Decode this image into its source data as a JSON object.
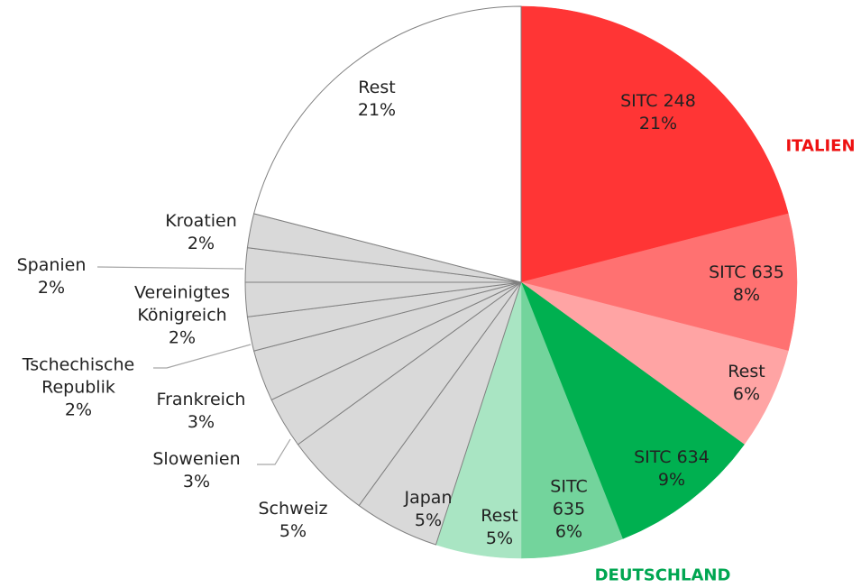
{
  "chart_data": {
    "type": "pie",
    "categories": [
      "SITC 248",
      "SITC 635",
      "Rest",
      "SITC 634",
      "SITC 635",
      "Rest",
      "Japan",
      "Schweiz",
      "Slowenien",
      "Frankreich",
      "Tschechische Republik",
      "Vereinigtes Königreich",
      "Spanien",
      "Kroatien",
      "Rest"
    ],
    "values": [
      21,
      8,
      6,
      9,
      6,
      5,
      5,
      5,
      3,
      3,
      2,
      2,
      2,
      2,
      21
    ],
    "value_labels": [
      "21%",
      "8%",
      "6%",
      "9%",
      "6%",
      "5%",
      "5%",
      "5%",
      "3%",
      "3%",
      "2%",
      "2%",
      "2%",
      "2%",
      "21%"
    ],
    "colors": [
      "#ff3535",
      "#ff7171",
      "#ffa4a4",
      "#00b050",
      "#73d49c",
      "#a9e5c3",
      "#d9d9d9",
      "#d9d9d9",
      "#d9d9d9",
      "#d9d9d9",
      "#d9d9d9",
      "#d9d9d9",
      "#d9d9d9",
      "#d9d9d9",
      "#ffffff"
    ],
    "annotations": [
      {
        "text": "ITALIEN",
        "color": "#ee1111"
      },
      {
        "text": "DEUTSCHLAND",
        "color": "#00a651"
      }
    ]
  }
}
